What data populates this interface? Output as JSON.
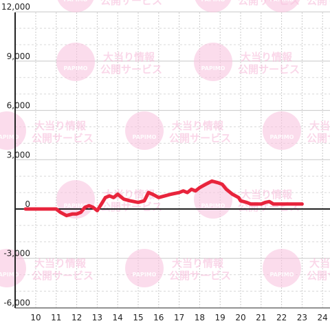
{
  "watermark": {
    "logo_text": "PAPIMO",
    "line1": "大当り情報",
    "line2": "公開サービス"
  },
  "chart_data": {
    "type": "line",
    "xlim": [
      9.5,
      24.3
    ],
    "ylim": [
      -6000,
      12000
    ],
    "x_ticks": [
      10,
      11,
      12,
      13,
      14,
      15,
      16,
      17,
      18,
      19,
      20,
      21,
      22,
      23,
      24
    ],
    "y_ticks": [
      12000,
      9000,
      6000,
      3000,
      0,
      -3000,
      -6000
    ],
    "y_tick_labels": [
      "12,000",
      "9,000",
      "6,000",
      "3,000",
      "0",
      "-3,000",
      "-6,000"
    ],
    "grid": true,
    "series": [
      {
        "color": "#e8243c",
        "x": [
          9.5,
          10.0,
          10.5,
          11.0,
          11.2,
          11.5,
          11.8,
          12.0,
          12.2,
          12.4,
          12.6,
          12.8,
          13.0,
          13.2,
          13.4,
          13.6,
          13.8,
          14.0,
          14.3,
          14.6,
          15.0,
          15.3,
          15.5,
          15.7,
          16.0,
          16.3,
          16.6,
          17.0,
          17.2,
          17.4,
          17.6,
          17.8,
          18.0,
          18.3,
          18.6,
          18.9,
          19.1,
          19.3,
          19.6,
          19.9,
          20.0,
          20.3,
          20.5,
          20.8,
          21.0,
          21.2,
          21.4,
          21.6,
          22.0,
          22.5,
          23.0
        ],
        "y": [
          0,
          0,
          0,
          0,
          -200,
          -400,
          -300,
          -300,
          -200,
          100,
          200,
          100,
          -100,
          300,
          700,
          800,
          700,
          900,
          600,
          500,
          400,
          500,
          1000,
          900,
          700,
          800,
          900,
          1000,
          1100,
          1000,
          1200,
          1100,
          1300,
          1500,
          1700,
          1600,
          1500,
          1200,
          900,
          700,
          500,
          400,
          300,
          300,
          300,
          400,
          450,
          300,
          300,
          300,
          300
        ]
      }
    ]
  }
}
